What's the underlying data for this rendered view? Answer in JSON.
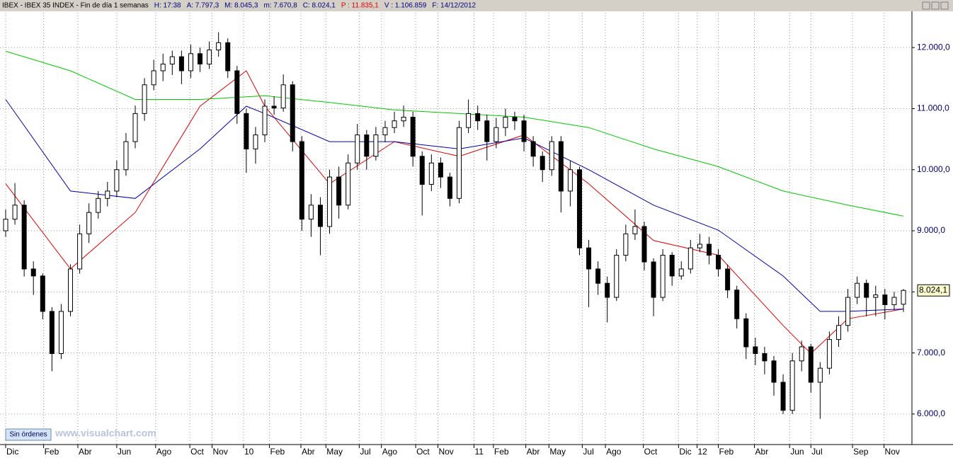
{
  "header": {
    "fields": [
      {
        "text": "IBEX - IBEX 35 INDEX - Fin de día 1 semanas",
        "color": "#000000"
      },
      {
        "text": "H: 17:38",
        "color": "#000080"
      },
      {
        "text": "A: 7.797,3",
        "color": "#000080"
      },
      {
        "text": "M: 8.045,3",
        "color": "#000080"
      },
      {
        "text": "m: 7.670,8",
        "color": "#000080"
      },
      {
        "text": "C: 8.024,1",
        "color": "#000080"
      },
      {
        "text": "P : 11.835,1",
        "color": "#e00000"
      },
      {
        "text": "V : 1.106.859",
        "color": "#000080"
      },
      {
        "text": "F: 14/12/2012",
        "color": "#000080"
      }
    ]
  },
  "footer": {
    "button": "Sin órdenes",
    "watermark": "www.visualchart.com"
  },
  "chart_data": {
    "type": "candlestick",
    "ylim": [
      5500,
      12570
    ],
    "yticks": [
      {
        "value": 6000,
        "label": "6.000,0"
      },
      {
        "value": 7000,
        "label": "7.000,0"
      },
      {
        "value": 8000,
        "label": "8.000,0"
      },
      {
        "value": 9000,
        "label": "9.000,0"
      },
      {
        "value": 10000,
        "label": "10.000,0"
      },
      {
        "value": 11000,
        "label": "11.000,0"
      },
      {
        "value": 12000,
        "label": "12.000,0"
      }
    ],
    "xticks": [
      {
        "value": 0,
        "label": "Dic"
      },
      {
        "value": 4.1,
        "label": "Feb"
      },
      {
        "value": 7.8,
        "label": "Abr"
      },
      {
        "value": 12,
        "label": "Jun"
      },
      {
        "value": 16.2,
        "label": "Ago"
      },
      {
        "value": 19.9,
        "label": "Oct"
      },
      {
        "value": 22.3,
        "label": "Nov"
      },
      {
        "value": 25.7,
        "label": "10"
      },
      {
        "value": 28.5,
        "label": "Feb"
      },
      {
        "value": 31.9,
        "label": "Abr"
      },
      {
        "value": 34.6,
        "label": "May"
      },
      {
        "value": 38.2,
        "label": "Jul"
      },
      {
        "value": 40.6,
        "label": "Ago"
      },
      {
        "value": 44.3,
        "label": "Oct"
      },
      {
        "value": 46.7,
        "label": "Nov"
      },
      {
        "value": 50.6,
        "label": "11"
      },
      {
        "value": 52.7,
        "label": "Feb"
      },
      {
        "value": 56.2,
        "label": "Abr"
      },
      {
        "value": 58.7,
        "label": "May"
      },
      {
        "value": 62.3,
        "label": "Jul"
      },
      {
        "value": 64.8,
        "label": "Ago"
      },
      {
        "value": 68.9,
        "label": "Oct"
      },
      {
        "value": 72.7,
        "label": "Dic"
      },
      {
        "value": 74.7,
        "label": "12"
      },
      {
        "value": 77,
        "label": "Feb"
      },
      {
        "value": 80.9,
        "label": "Abr"
      },
      {
        "value": 84.7,
        "label": "Jun"
      },
      {
        "value": 87,
        "label": "Jul"
      },
      {
        "value": 91.5,
        "label": "Sep"
      },
      {
        "value": 94.9,
        "label": "Nov"
      }
    ],
    "grid": true,
    "up_color": "#ffffff",
    "down_color": "#000000",
    "open": [
      9000,
      9190,
      9420,
      8375,
      8260,
      7680,
      6990,
      7680,
      8375,
      8950,
      9300,
      9530,
      9650,
      10000,
      10460,
      10920,
      11390,
      11620,
      11730,
      11850,
      11620,
      11900,
      11730,
      11960,
      12080,
      11620,
      10920,
      10340,
      10570,
      11040,
      11010,
      11390,
      10460,
      9190,
      9420,
      9070,
      9880,
      9420,
      10110,
      10570,
      10220,
      10570,
      10690,
      10800,
      10860,
      10220,
      9760,
      10110,
      9880,
      9530,
      10690,
      10920,
      10800,
      10460,
      10690,
      10860,
      10800,
      10460,
      10220,
      10000,
      10460,
      9650,
      10000,
      8720,
      8375,
      8140,
      7910,
      8600,
      8950,
      9070,
      8490,
      7910,
      8600,
      8260,
      8375,
      8720,
      8780,
      8600,
      8375,
      8030,
      7560,
      7100,
      6990,
      6870,
      6520,
      6060,
      6870,
      7100,
      6520,
      6750,
      7220,
      7450,
      7910,
      8140,
      7910,
      7950,
      7790,
      7797.3
    ],
    "high": [
      9350,
      9780,
      9500,
      8500,
      8300,
      7750,
      7800,
      8450,
      9100,
      9450,
      9650,
      9800,
      10150,
      10600,
      11050,
      11500,
      11800,
      11900,
      11950,
      11950,
      12050,
      12000,
      12100,
      12250,
      12150,
      11700,
      11000,
      10700,
      11150,
      11200,
      11560,
      11450,
      10550,
      9600,
      9550,
      10000,
      10050,
      10250,
      10750,
      10650,
      10700,
      10800,
      10950,
      11050,
      10950,
      10300,
      10250,
      10200,
      9950,
      10800,
      11150,
      11050,
      10900,
      10850,
      11000,
      10950,
      10900,
      10550,
      10300,
      10550,
      10550,
      10150,
      10050,
      8850,
      8500,
      8250,
      8700,
      9100,
      9350,
      9150,
      8550,
      8700,
      8650,
      8500,
      8850,
      8950,
      8900,
      8700,
      8450,
      8100,
      7650,
      7250,
      7100,
      6950,
      6650,
      7000,
      7200,
      7150,
      6850,
      7350,
      7600,
      8050,
      8250,
      8200,
      8100,
      8050,
      8000,
      8045.3
    ],
    "low": [
      8900,
      9100,
      8250,
      7950,
      7550,
      6700,
      6900,
      7600,
      8300,
      8800,
      9200,
      9400,
      9550,
      9900,
      10350,
      10800,
      11300,
      11450,
      11550,
      11400,
      11500,
      11600,
      11650,
      11850,
      11500,
      10750,
      9950,
      10100,
      10450,
      10900,
      10950,
      10300,
      9000,
      8900,
      8600,
      8950,
      9200,
      9350,
      10000,
      10000,
      10150,
      10450,
      10600,
      10700,
      10050,
      9250,
      9650,
      9700,
      9400,
      9450,
      10600,
      10650,
      10150,
      10350,
      10550,
      10650,
      10300,
      10050,
      9800,
      9900,
      9300,
      9400,
      8600,
      7750,
      7950,
      7500,
      7850,
      8500,
      8850,
      8350,
      7600,
      7850,
      8100,
      8200,
      8300,
      8650,
      8450,
      8250,
      7900,
      7400,
      6900,
      6800,
      6650,
      6300,
      6000,
      6000,
      6700,
      6350,
      5920,
      6650,
      7100,
      7350,
      7800,
      7600,
      7600,
      7550,
      7700,
      7670.8
    ],
    "close": [
      9190,
      9420,
      8375,
      8260,
      7680,
      6990,
      7680,
      8375,
      8950,
      9300,
      9530,
      9650,
      10000,
      10460,
      10920,
      11390,
      11620,
      11730,
      11850,
      11620,
      11900,
      11730,
      11960,
      12080,
      11620,
      10920,
      10340,
      10570,
      11040,
      11010,
      11390,
      10460,
      9190,
      9420,
      9070,
      9880,
      9420,
      10110,
      10570,
      10220,
      10570,
      10690,
      10800,
      10860,
      10220,
      9760,
      10110,
      9880,
      9530,
      10690,
      10920,
      10800,
      10460,
      10690,
      10860,
      10800,
      10460,
      10220,
      10000,
      10460,
      9650,
      10000,
      8720,
      8375,
      8140,
      7910,
      8600,
      8950,
      9070,
      8490,
      7910,
      8600,
      8260,
      8375,
      8720,
      8780,
      8600,
      8375,
      8030,
      7560,
      7100,
      6990,
      6870,
      6520,
      6060,
      6870,
      7100,
      6520,
      6750,
      7220,
      7450,
      7910,
      8140,
      7910,
      7950,
      7790,
      7910,
      8024.1
    ],
    "last_price_label": "8.024,1",
    "lines": [
      {
        "color": "#e00000",
        "x": [
          0,
          7,
          14,
          21,
          26,
          28,
          35,
          42,
          49,
          56,
          63,
          70,
          77,
          84,
          87,
          91,
          97
        ],
        "values": [
          9770,
          8375,
          9300,
          11040,
          11620,
          11040,
          9770,
          10460,
          10220,
          10570,
          9770,
          8840,
          8600,
          7450,
          6990,
          7560,
          7720
        ]
      },
      {
        "color": "#0000b0",
        "x": [
          0,
          7,
          14,
          21,
          26,
          28,
          35,
          42,
          49,
          56,
          63,
          70,
          77,
          84,
          88,
          91,
          97
        ],
        "values": [
          11150,
          9650,
          9530,
          10340,
          11040,
          10920,
          10460,
          10460,
          10340,
          10520,
          10000,
          9420,
          9010,
          8260,
          7680,
          7680,
          7720
        ]
      },
      {
        "color": "#00c800",
        "x": [
          0,
          7,
          14,
          21,
          28,
          35,
          42,
          49,
          56,
          63,
          70,
          77,
          84,
          91,
          97
        ],
        "values": [
          11940,
          11620,
          11150,
          11150,
          11210,
          11100,
          10980,
          10920,
          10860,
          10690,
          10340,
          10050,
          9650,
          9420,
          9240
        ]
      }
    ]
  }
}
